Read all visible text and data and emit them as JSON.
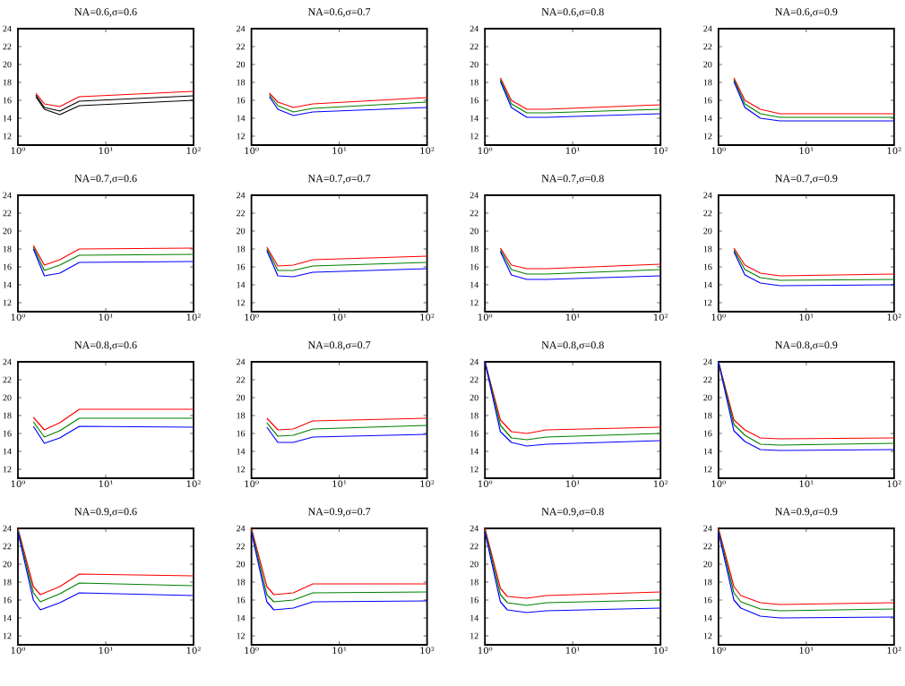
{
  "chart_data": [
    {
      "type": "line",
      "title": "NA=0.6,σ=0.6",
      "x": [
        1.6,
        2,
        3,
        5,
        100
      ],
      "log": "x",
      "xlim": [
        1,
        100
      ],
      "xticks": [
        {
          "value": 1,
          "label": "10⁰"
        },
        {
          "value": 10,
          "label": "10¹"
        },
        {
          "value": 100,
          "label": "10²"
        }
      ],
      "ylim": [
        11,
        24
      ],
      "yticks": [
        12,
        14,
        16,
        18,
        20,
        22,
        24
      ],
      "series": [
        {
          "color": "#ff0000",
          "values": [
            16.8,
            15.6,
            15.3,
            16.4,
            17.0
          ]
        },
        {
          "color": "#000000",
          "values": [
            16.6,
            15.2,
            14.8,
            15.9,
            16.5
          ]
        },
        {
          "color": "#000000",
          "values": [
            16.4,
            15.0,
            14.4,
            15.4,
            16.0
          ]
        }
      ]
    },
    {
      "type": "line",
      "title": "NA=0.6,σ=0.7",
      "x": [
        1.6,
        2,
        3,
        5,
        100
      ],
      "log": "x",
      "xlim": [
        1,
        100
      ],
      "xticks": [
        {
          "value": 1,
          "label": "10⁰"
        },
        {
          "value": 10,
          "label": "10¹"
        },
        {
          "value": 100,
          "label": "10²"
        }
      ],
      "ylim": [
        11,
        24
      ],
      "yticks": [
        12,
        14,
        16,
        18,
        20,
        22,
        24
      ],
      "series": [
        {
          "color": "#ff0000",
          "values": [
            16.8,
            15.8,
            15.2,
            15.6,
            16.3
          ]
        },
        {
          "color": "#008000",
          "values": [
            16.6,
            15.4,
            14.7,
            15.1,
            15.8
          ]
        },
        {
          "color": "#0000ff",
          "values": [
            16.4,
            15.0,
            14.3,
            14.7,
            15.2
          ]
        }
      ]
    },
    {
      "type": "line",
      "title": "NA=0.6,σ=0.8",
      "x": [
        1.5,
        2,
        3,
        5,
        100
      ],
      "log": "x",
      "xlim": [
        1,
        100
      ],
      "xticks": [
        {
          "value": 1,
          "label": "10⁰"
        },
        {
          "value": 10,
          "label": "10¹"
        },
        {
          "value": 100,
          "label": "10²"
        }
      ],
      "ylim": [
        11,
        24
      ],
      "yticks": [
        12,
        14,
        16,
        18,
        20,
        22,
        24
      ],
      "series": [
        {
          "color": "#ff0000",
          "values": [
            18.5,
            16.0,
            15.0,
            15.0,
            15.5
          ]
        },
        {
          "color": "#008000",
          "values": [
            18.3,
            15.6,
            14.6,
            14.6,
            15.0
          ]
        },
        {
          "color": "#0000ff",
          "values": [
            18.1,
            15.2,
            14.1,
            14.1,
            14.5
          ]
        }
      ]
    },
    {
      "type": "line",
      "title": "NA=0.6,σ=0.9",
      "x": [
        1.5,
        2,
        3,
        5,
        100
      ],
      "log": "x",
      "xlim": [
        1,
        100
      ],
      "xticks": [
        {
          "value": 1,
          "label": "10⁰"
        },
        {
          "value": 10,
          "label": "10¹"
        },
        {
          "value": 100,
          "label": "10²"
        }
      ],
      "ylim": [
        11,
        24
      ],
      "yticks": [
        12,
        14,
        16,
        18,
        20,
        22,
        24
      ],
      "series": [
        {
          "color": "#ff0000",
          "values": [
            18.5,
            16.0,
            15.0,
            14.5,
            14.5
          ]
        },
        {
          "color": "#008000",
          "values": [
            18.3,
            15.6,
            14.5,
            14.1,
            14.1
          ]
        },
        {
          "color": "#0000ff",
          "values": [
            18.1,
            15.2,
            14.0,
            13.7,
            13.7
          ]
        }
      ]
    },
    {
      "type": "line",
      "title": "NA=0.7,σ=0.6",
      "x": [
        1.5,
        2,
        3,
        5,
        100
      ],
      "log": "x",
      "xlim": [
        1,
        100
      ],
      "xticks": [
        {
          "value": 1,
          "label": "10⁰"
        },
        {
          "value": 10,
          "label": "10¹"
        },
        {
          "value": 100,
          "label": "10²"
        }
      ],
      "ylim": [
        11,
        24
      ],
      "yticks": [
        12,
        14,
        16,
        18,
        20,
        22,
        24
      ],
      "series": [
        {
          "color": "#ff0000",
          "values": [
            18.4,
            16.2,
            16.8,
            18.0,
            18.1
          ]
        },
        {
          "color": "#008000",
          "values": [
            18.2,
            15.6,
            16.2,
            17.3,
            17.4
          ]
        },
        {
          "color": "#0000ff",
          "values": [
            18.0,
            15.0,
            15.3,
            16.5,
            16.6
          ]
        }
      ]
    },
    {
      "type": "line",
      "title": "NA=0.7,σ=0.7",
      "x": [
        1.5,
        2,
        3,
        5,
        100
      ],
      "log": "x",
      "xlim": [
        1,
        100
      ],
      "xticks": [
        {
          "value": 1,
          "label": "10⁰"
        },
        {
          "value": 10,
          "label": "10¹"
        },
        {
          "value": 100,
          "label": "10²"
        }
      ],
      "ylim": [
        11,
        24
      ],
      "yticks": [
        12,
        14,
        16,
        18,
        20,
        22,
        24
      ],
      "series": [
        {
          "color": "#ff0000",
          "values": [
            18.2,
            16.1,
            16.2,
            16.8,
            17.2
          ]
        },
        {
          "color": "#008000",
          "values": [
            18.0,
            15.6,
            15.6,
            16.1,
            16.5
          ]
        },
        {
          "color": "#0000ff",
          "values": [
            17.8,
            15.0,
            14.9,
            15.4,
            15.8
          ]
        }
      ]
    },
    {
      "type": "line",
      "title": "NA=0.7,σ=0.8",
      "x": [
        1.5,
        2,
        3,
        5,
        100
      ],
      "log": "x",
      "xlim": [
        1,
        100
      ],
      "xticks": [
        {
          "value": 1,
          "label": "10⁰"
        },
        {
          "value": 10,
          "label": "10¹"
        },
        {
          "value": 100,
          "label": "10²"
        }
      ],
      "ylim": [
        11,
        24
      ],
      "yticks": [
        12,
        14,
        16,
        18,
        20,
        22,
        24
      ],
      "series": [
        {
          "color": "#ff0000",
          "values": [
            18.1,
            16.2,
            15.8,
            15.8,
            16.3
          ]
        },
        {
          "color": "#008000",
          "values": [
            17.9,
            15.7,
            15.2,
            15.2,
            15.7
          ]
        },
        {
          "color": "#0000ff",
          "values": [
            17.7,
            15.1,
            14.6,
            14.6,
            15.0
          ]
        }
      ]
    },
    {
      "type": "line",
      "title": "NA=0.7,σ=0.9",
      "x": [
        1.5,
        2,
        3,
        5,
        100
      ],
      "log": "x",
      "xlim": [
        1,
        100
      ],
      "xticks": [
        {
          "value": 1,
          "label": "10⁰"
        },
        {
          "value": 10,
          "label": "10¹"
        },
        {
          "value": 100,
          "label": "10²"
        }
      ],
      "ylim": [
        11,
        24
      ],
      "yticks": [
        12,
        14,
        16,
        18,
        20,
        22,
        24
      ],
      "series": [
        {
          "color": "#ff0000",
          "values": [
            18.1,
            16.2,
            15.3,
            15.0,
            15.2
          ]
        },
        {
          "color": "#008000",
          "values": [
            17.9,
            15.7,
            14.8,
            14.5,
            14.6
          ]
        },
        {
          "color": "#0000ff",
          "values": [
            17.7,
            15.1,
            14.2,
            13.9,
            14.0
          ]
        }
      ]
    },
    {
      "type": "line",
      "title": "NA=0.8,σ=0.6",
      "x": [
        1.5,
        2,
        3,
        5,
        100
      ],
      "log": "x",
      "xlim": [
        1,
        100
      ],
      "xticks": [
        {
          "value": 1,
          "label": "10⁰"
        },
        {
          "value": 10,
          "label": "10¹"
        },
        {
          "value": 100,
          "label": "10²"
        }
      ],
      "ylim": [
        11,
        24
      ],
      "yticks": [
        12,
        14,
        16,
        18,
        20,
        22,
        24
      ],
      "series": [
        {
          "color": "#ff0000",
          "values": [
            17.8,
            16.4,
            17.2,
            18.7,
            18.7
          ]
        },
        {
          "color": "#008000",
          "values": [
            17.3,
            15.6,
            16.3,
            17.7,
            17.7
          ]
        },
        {
          "color": "#0000ff",
          "values": [
            16.8,
            14.9,
            15.5,
            16.8,
            16.7
          ]
        }
      ]
    },
    {
      "type": "line",
      "title": "NA=0.8,σ=0.7",
      "x": [
        1.5,
        2,
        3,
        5,
        100
      ],
      "log": "x",
      "xlim": [
        1,
        100
      ],
      "xticks": [
        {
          "value": 1,
          "label": "10⁰"
        },
        {
          "value": 10,
          "label": "10¹"
        },
        {
          "value": 100,
          "label": "10²"
        }
      ],
      "ylim": [
        11,
        24
      ],
      "yticks": [
        12,
        14,
        16,
        18,
        20,
        22,
        24
      ],
      "series": [
        {
          "color": "#ff0000",
          "values": [
            17.7,
            16.4,
            16.5,
            17.4,
            17.7
          ]
        },
        {
          "color": "#008000",
          "values": [
            17.2,
            15.7,
            15.8,
            16.5,
            16.9
          ]
        },
        {
          "color": "#0000ff",
          "values": [
            16.7,
            15.0,
            15.0,
            15.6,
            15.9
          ]
        }
      ]
    },
    {
      "type": "line",
      "title": "NA=0.8,σ=0.8",
      "x": [
        1,
        1.5,
        2,
        3,
        5,
        100
      ],
      "log": "x",
      "xlim": [
        1,
        100
      ],
      "xticks": [
        {
          "value": 1,
          "label": "10⁰"
        },
        {
          "value": 10,
          "label": "10¹"
        },
        {
          "value": 100,
          "label": "10²"
        }
      ],
      "ylim": [
        11,
        24
      ],
      "yticks": [
        12,
        14,
        16,
        18,
        20,
        22,
        24
      ],
      "series": [
        {
          "color": "#ff0000",
          "values": [
            24,
            17.5,
            16.2,
            16.0,
            16.4,
            16.7
          ]
        },
        {
          "color": "#008000",
          "values": [
            24,
            16.9,
            15.5,
            15.3,
            15.6,
            16.0
          ]
        },
        {
          "color": "#0000ff",
          "values": [
            24,
            16.2,
            15.0,
            14.6,
            14.8,
            15.2
          ]
        }
      ]
    },
    {
      "type": "line",
      "title": "NA=0.8,σ=0.9",
      "x": [
        1,
        1.5,
        2,
        3,
        5,
        100
      ],
      "log": "x",
      "xlim": [
        1,
        100
      ],
      "xticks": [
        {
          "value": 1,
          "label": "10⁰"
        },
        {
          "value": 10,
          "label": "10¹"
        },
        {
          "value": 100,
          "label": "10²"
        }
      ],
      "ylim": [
        11,
        24
      ],
      "yticks": [
        12,
        14,
        16,
        18,
        20,
        22,
        24
      ],
      "series": [
        {
          "color": "#ff0000",
          "values": [
            24,
            17.5,
            16.4,
            15.5,
            15.4,
            15.5
          ]
        },
        {
          "color": "#008000",
          "values": [
            24,
            17.0,
            15.8,
            14.8,
            14.7,
            14.9
          ]
        },
        {
          "color": "#0000ff",
          "values": [
            24,
            16.3,
            15.1,
            14.2,
            14.1,
            14.2
          ]
        }
      ]
    },
    {
      "type": "line",
      "title": "NA=0.9,σ=0.6",
      "x": [
        1,
        1.5,
        1.8,
        3,
        5,
        100
      ],
      "log": "x",
      "xlim": [
        1,
        100
      ],
      "xticks": [
        {
          "value": 1,
          "label": "10⁰"
        },
        {
          "value": 10,
          "label": "10¹"
        },
        {
          "value": 100,
          "label": "10²"
        }
      ],
      "ylim": [
        11,
        24
      ],
      "yticks": [
        12,
        14,
        16,
        18,
        20,
        22,
        24
      ],
      "series": [
        {
          "color": "#ff0000",
          "values": [
            24,
            17.5,
            16.6,
            17.5,
            18.9,
            18.7
          ]
        },
        {
          "color": "#008000",
          "values": [
            23.8,
            16.8,
            15.8,
            16.7,
            17.9,
            17.6
          ]
        },
        {
          "color": "#0000ff",
          "values": [
            23.6,
            16.0,
            14.9,
            15.7,
            16.8,
            16.5
          ]
        }
      ]
    },
    {
      "type": "line",
      "title": "NA=0.9,σ=0.7",
      "x": [
        1,
        1.5,
        1.8,
        3,
        5,
        100
      ],
      "log": "x",
      "xlim": [
        1,
        100
      ],
      "xticks": [
        {
          "value": 1,
          "label": "10⁰"
        },
        {
          "value": 10,
          "label": "10¹"
        },
        {
          "value": 100,
          "label": "10²"
        }
      ],
      "ylim": [
        11,
        24
      ],
      "yticks": [
        12,
        14,
        16,
        18,
        20,
        22,
        24
      ],
      "series": [
        {
          "color": "#ff0000",
          "values": [
            24,
            17.5,
            16.6,
            16.8,
            17.8,
            17.8
          ]
        },
        {
          "color": "#008000",
          "values": [
            23.8,
            16.6,
            15.8,
            16.0,
            16.8,
            16.9
          ]
        },
        {
          "color": "#0000ff",
          "values": [
            23.6,
            15.8,
            14.9,
            15.1,
            15.8,
            15.9
          ]
        }
      ]
    },
    {
      "type": "line",
      "title": "NA=0.9,σ=0.8",
      "x": [
        1,
        1.5,
        1.8,
        3,
        5,
        100
      ],
      "log": "x",
      "xlim": [
        1,
        100
      ],
      "xticks": [
        {
          "value": 1,
          "label": "10⁰"
        },
        {
          "value": 10,
          "label": "10¹"
        },
        {
          "value": 100,
          "label": "10²"
        }
      ],
      "ylim": [
        11,
        24
      ],
      "yticks": [
        12,
        14,
        16,
        18,
        20,
        22,
        24
      ],
      "series": [
        {
          "color": "#ff0000",
          "values": [
            24,
            17.3,
            16.4,
            16.2,
            16.5,
            16.9
          ]
        },
        {
          "color": "#008000",
          "values": [
            23.8,
            16.6,
            15.7,
            15.4,
            15.7,
            16.0
          ]
        },
        {
          "color": "#0000ff",
          "values": [
            23.6,
            15.8,
            14.9,
            14.6,
            14.8,
            15.1
          ]
        }
      ]
    },
    {
      "type": "line",
      "title": "NA=0.9,σ=0.9",
      "x": [
        1,
        1.5,
        1.8,
        3,
        5,
        100
      ],
      "log": "x",
      "xlim": [
        1,
        100
      ],
      "xticks": [
        {
          "value": 1,
          "label": "10⁰"
        },
        {
          "value": 10,
          "label": "10¹"
        },
        {
          "value": 100,
          "label": "10²"
        }
      ],
      "ylim": [
        11,
        24
      ],
      "yticks": [
        12,
        14,
        16,
        18,
        20,
        22,
        24
      ],
      "series": [
        {
          "color": "#ff0000",
          "values": [
            24,
            17.5,
            16.5,
            15.7,
            15.5,
            15.7
          ]
        },
        {
          "color": "#008000",
          "values": [
            23.8,
            16.8,
            15.8,
            15.0,
            14.8,
            15.0
          ]
        },
        {
          "color": "#0000ff",
          "values": [
            23.6,
            16.0,
            15.1,
            14.2,
            14.0,
            14.1
          ]
        }
      ]
    }
  ]
}
